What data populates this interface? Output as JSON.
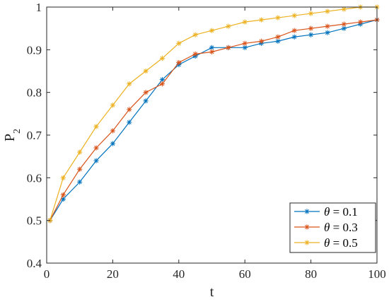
{
  "chart_data": {
    "type": "line",
    "xlabel": "t",
    "ylabel": "P",
    "ylabel_sub": "2",
    "xlim": [
      0,
      100
    ],
    "ylim": [
      0.4,
      1.0
    ],
    "xticks": [
      0,
      20,
      40,
      60,
      80,
      100
    ],
    "yticks": [
      0.4,
      0.5,
      0.6,
      0.7,
      0.8,
      0.9,
      1.0
    ],
    "xtick_labels": [
      "0",
      "20",
      "40",
      "60",
      "80",
      "100"
    ],
    "ytick_labels": [
      "0.4",
      "0.5",
      "0.6",
      "0.7",
      "0.8",
      "0.9",
      "1"
    ],
    "grid": false,
    "legend_position": "bottom-right",
    "x": [
      1,
      5,
      10,
      15,
      20,
      25,
      30,
      35,
      40,
      45,
      50,
      55,
      60,
      65,
      70,
      75,
      80,
      85,
      90,
      95,
      100
    ],
    "series": [
      {
        "name": "θ = 0.1",
        "name_symbol": "θ",
        "name_rest": " = 0.1",
        "color": "#0072BD",
        "values": [
          0.5,
          0.55,
          0.59,
          0.64,
          0.68,
          0.73,
          0.78,
          0.83,
          0.865,
          0.885,
          0.905,
          0.905,
          0.905,
          0.915,
          0.92,
          0.93,
          0.935,
          0.94,
          0.95,
          0.96,
          0.97
        ]
      },
      {
        "name": "θ = 0.3",
        "name_symbol": "θ",
        "name_rest": " = 0.3",
        "color": "#D95319",
        "values": [
          0.5,
          0.56,
          0.62,
          0.67,
          0.71,
          0.76,
          0.8,
          0.82,
          0.87,
          0.89,
          0.895,
          0.905,
          0.915,
          0.92,
          0.93,
          0.945,
          0.95,
          0.955,
          0.96,
          0.965,
          0.97
        ]
      },
      {
        "name": "θ = 0.5",
        "name_symbol": "θ",
        "name_rest": " = 0.5",
        "color": "#EDB120",
        "values": [
          0.5,
          0.6,
          0.66,
          0.72,
          0.77,
          0.82,
          0.85,
          0.88,
          0.915,
          0.935,
          0.945,
          0.955,
          0.965,
          0.97,
          0.975,
          0.98,
          0.985,
          0.99,
          0.995,
          1.0,
          1.0
        ]
      }
    ]
  }
}
